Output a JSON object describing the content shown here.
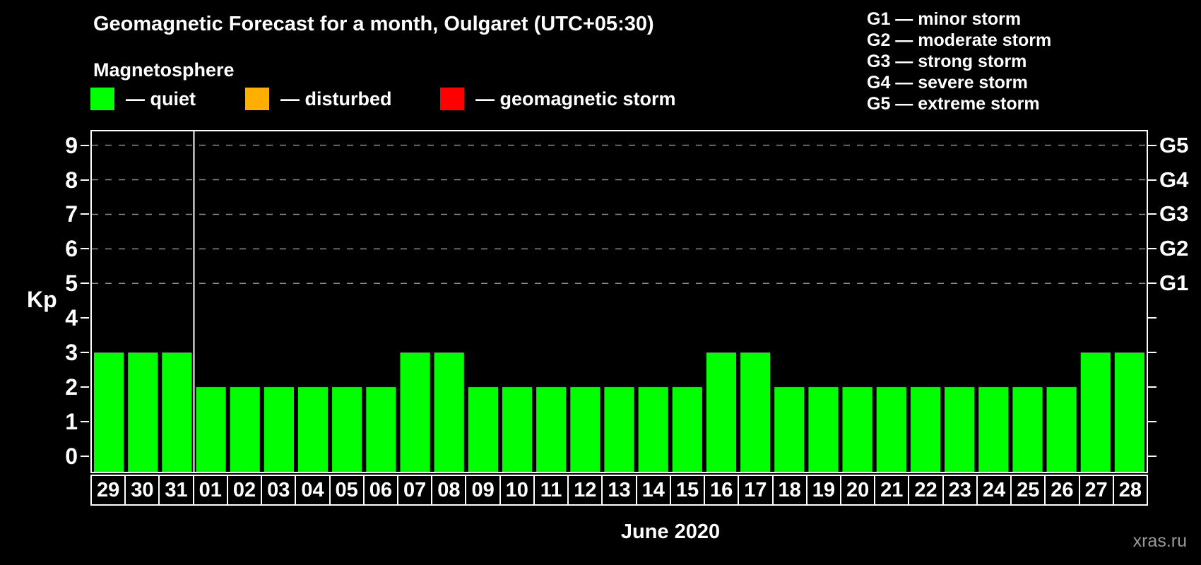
{
  "title": "Geomagnetic Forecast for a month, Oulgaret (UTC+05:30)",
  "subtitle": "Magnetosphere",
  "legend": {
    "items": [
      {
        "name": "quiet",
        "label": "— quiet",
        "color": "#00ff00"
      },
      {
        "name": "disturbed",
        "label": "— disturbed",
        "color": "#ffaf00"
      },
      {
        "name": "storm",
        "label": "— geomagnetic storm",
        "color": "#ff0000"
      }
    ]
  },
  "g_scale_legend": [
    "G1 — minor storm",
    "G2 — moderate storm",
    "G3 — strong storm",
    "G4 — severe storm",
    "G5 — extreme storm"
  ],
  "axes": {
    "y_left_label": "Kp",
    "y_left_ticks": [
      0,
      1,
      2,
      3,
      4,
      5,
      6,
      7,
      8,
      9
    ],
    "y_right_ticks": [
      {
        "kp": 5,
        "label": "G1"
      },
      {
        "kp": 6,
        "label": "G2"
      },
      {
        "kp": 7,
        "label": "G3"
      },
      {
        "kp": 8,
        "label": "G4"
      },
      {
        "kp": 9,
        "label": "G5"
      }
    ],
    "x_label": "June 2020"
  },
  "chart_data": {
    "type": "bar",
    "title": "Geomagnetic Forecast for a month, Oulgaret (UTC+05:30)",
    "xlabel": "June 2020",
    "ylabel": "Kp",
    "ylim": [
      -0.45,
      9.4
    ],
    "categories": [
      "29",
      "30",
      "31",
      "01",
      "02",
      "03",
      "04",
      "05",
      "06",
      "07",
      "08",
      "09",
      "10",
      "11",
      "12",
      "13",
      "14",
      "15",
      "16",
      "17",
      "18",
      "19",
      "20",
      "21",
      "22",
      "23",
      "24",
      "25",
      "26",
      "27",
      "28"
    ],
    "values": [
      3,
      3,
      3,
      2,
      2,
      2,
      2,
      2,
      2,
      3,
      3,
      2,
      2,
      2,
      2,
      2,
      2,
      2,
      3,
      3,
      2,
      2,
      2,
      2,
      2,
      2,
      2,
      2,
      2,
      3,
      3
    ],
    "gridlines_kp": [
      5,
      6,
      7,
      8,
      9
    ],
    "month_separator_after": "31",
    "bar_color": "#00ff00",
    "grid_color": "#8c8c8c"
  },
  "watermark": "xras.ru"
}
